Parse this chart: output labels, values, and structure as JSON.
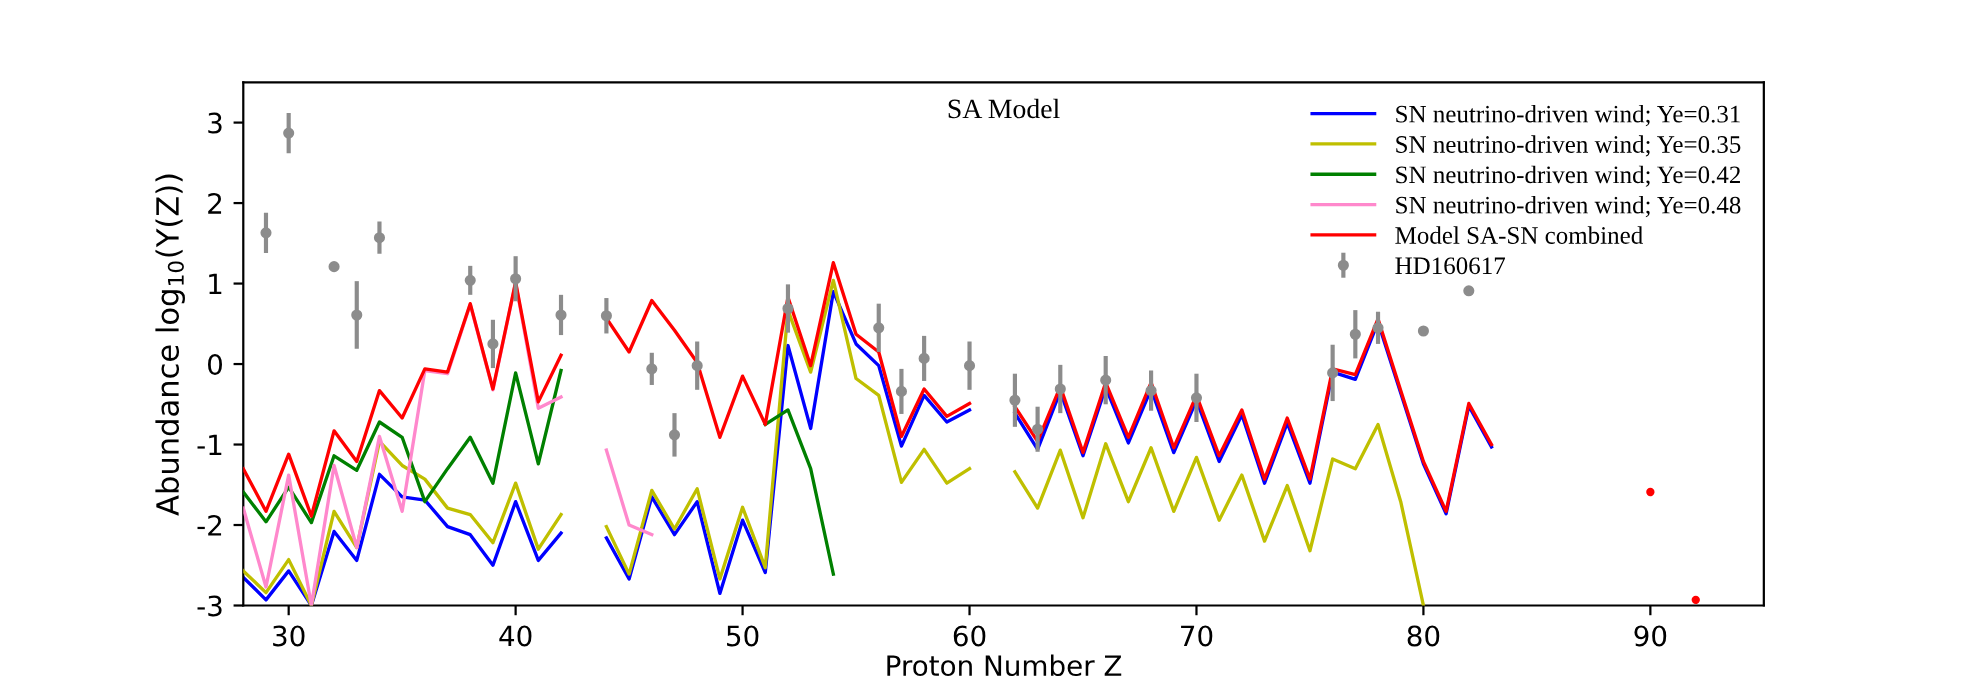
{
  "chart_data": {
    "type": "line",
    "title": "SA Model",
    "xlabel": "Proton Number Z",
    "ylabel": "Abundance log$_{10}$(Y(Z))",
    "x": [
      28,
      29,
      30,
      31,
      32,
      33,
      34,
      35,
      36,
      37,
      38,
      39,
      40,
      41,
      42,
      43,
      44,
      45,
      46,
      47,
      48,
      49,
      50,
      51,
      52,
      53,
      54,
      55,
      56,
      57,
      58,
      59,
      60,
      61,
      62,
      63,
      64,
      65,
      66,
      67,
      68,
      69,
      70,
      71,
      72,
      73,
      74,
      75,
      76,
      77,
      78,
      79,
      80,
      81,
      82,
      83,
      84,
      85,
      86,
      87,
      88,
      89,
      90,
      91,
      92
    ],
    "xlim": [
      28,
      95
    ],
    "ylim": [
      -3,
      3.5
    ],
    "xticks": [
      30,
      40,
      50,
      60,
      70,
      80,
      90
    ],
    "yticks": [
      -3,
      -2,
      -1,
      0,
      1,
      2,
      3
    ],
    "grid": false,
    "legend": "top right",
    "line_style": "solid",
    "series": [
      {
        "name": "SN neutrino-driven wind; Ye=0.31",
        "color": "#0000ff",
        "values": [
          -2.65,
          -2.93,
          -2.57,
          -3.0,
          -2.08,
          -2.44,
          -1.37,
          -1.65,
          -1.69,
          -2.02,
          -2.12,
          -2.5,
          -1.71,
          -2.44,
          -2.1,
          null,
          -2.16,
          -2.67,
          -1.65,
          -2.12,
          -1.71,
          -2.85,
          -1.94,
          -2.59,
          0.23,
          -0.8,
          0.9,
          0.25,
          -0.02,
          -1.02,
          -0.39,
          -0.72,
          -0.57,
          null,
          -0.61,
          -1.06,
          -0.34,
          -1.14,
          -0.29,
          -0.98,
          -0.31,
          -1.1,
          -0.45,
          -1.21,
          -0.63,
          -1.48,
          -0.73,
          -1.48,
          -0.1,
          -0.19,
          0.52,
          -0.36,
          -1.24,
          -1.86,
          -0.52,
          -1.03,
          null,
          null,
          null,
          null,
          null,
          null,
          null,
          null,
          null
        ]
      },
      {
        "name": "SN neutrino-driven wind; Ye=0.35",
        "color": "#bfbf00",
        "values": [
          -2.57,
          -2.84,
          -2.43,
          -3.0,
          -1.83,
          -2.28,
          -0.96,
          -1.26,
          -1.43,
          -1.79,
          -1.87,
          -2.22,
          -1.48,
          -2.3,
          -1.87,
          null,
          -2.02,
          -2.61,
          -1.57,
          -2.05,
          -1.55,
          -2.67,
          -1.78,
          -2.53,
          0.67,
          -0.1,
          1.04,
          -0.18,
          -0.39,
          -1.47,
          -1.06,
          -1.48,
          -1.3,
          null,
          -1.34,
          -1.79,
          -1.07,
          -1.91,
          -0.99,
          -1.71,
          -1.04,
          -1.83,
          -1.16,
          -1.94,
          -1.38,
          -2.2,
          -1.51,
          -2.32,
          -1.18,
          -1.3,
          -0.75,
          -1.71,
          -3.0,
          null,
          null,
          null,
          null,
          null,
          null,
          null,
          null,
          null,
          null,
          null,
          null
        ]
      },
      {
        "name": "SN neutrino-driven wind; Ye=0.42",
        "color": "#008000",
        "values": [
          -1.59,
          -1.96,
          -1.53,
          -1.97,
          -1.14,
          -1.32,
          -0.72,
          -0.91,
          -1.71,
          -1.3,
          -0.91,
          -1.48,
          -0.11,
          -1.24,
          -0.08,
          null,
          null,
          null,
          null,
          null,
          null,
          null,
          null,
          -0.75,
          -0.57,
          -1.3,
          -2.61,
          null,
          null,
          null,
          null,
          null,
          null,
          null,
          null,
          null,
          null,
          null,
          null,
          null,
          null,
          null,
          null,
          null,
          null,
          null,
          null,
          null,
          null,
          null,
          null,
          null,
          null,
          null,
          null,
          null,
          null,
          null,
          null,
          null,
          null,
          null,
          null,
          null,
          null
        ]
      },
      {
        "name": "SN neutrino-driven wind; Ye=0.48",
        "color": "#ff88cc",
        "values": [
          -1.79,
          -2.77,
          -1.38,
          -3.0,
          -1.26,
          -2.28,
          -0.9,
          -1.83,
          -0.08,
          -0.12,
          0.74,
          -0.32,
          1.01,
          -0.55,
          -0.41,
          null,
          -1.07,
          -2.0,
          -2.12,
          null,
          null,
          null,
          null,
          null,
          null,
          null,
          null,
          null,
          null,
          null,
          null,
          null,
          null,
          null,
          null,
          null,
          null,
          null,
          null,
          null,
          null,
          null,
          null,
          null,
          null,
          null,
          null,
          null,
          null,
          null,
          null,
          null,
          null,
          null,
          null,
          null,
          null,
          null,
          null,
          null,
          null,
          null,
          null,
          null,
          null
        ]
      },
      {
        "name": "Model SA-SN combined",
        "color": "#ff0000",
        "values": [
          -1.3,
          -1.83,
          -1.12,
          -1.89,
          -0.83,
          -1.21,
          -0.33,
          -0.67,
          -0.06,
          -0.1,
          0.75,
          -0.31,
          1.02,
          -0.47,
          0.11,
          null,
          0.57,
          0.15,
          0.79,
          0.42,
          0.02,
          -0.91,
          -0.15,
          -0.75,
          0.83,
          -0.02,
          1.26,
          0.37,
          0.15,
          -0.9,
          -0.31,
          -0.65,
          -0.49,
          null,
          -0.53,
          -0.96,
          -0.28,
          -1.1,
          -0.23,
          -0.91,
          -0.23,
          -1.04,
          -0.39,
          -1.14,
          -0.57,
          -1.43,
          -0.67,
          -1.43,
          -0.06,
          -0.13,
          0.56,
          -0.33,
          -1.21,
          -1.83,
          -0.49,
          -1.0,
          null,
          null,
          null,
          null,
          null,
          null,
          -1.59,
          null,
          -2.93
        ]
      },
      {
        "name": "HD160617",
        "type": "scatter",
        "color": "#8c8c8c",
        "marker": "circle",
        "x": [
          29,
          30,
          32,
          33,
          34,
          38,
          39,
          40,
          42,
          44,
          46,
          47,
          48,
          52,
          56,
          57,
          58,
          60,
          62,
          63,
          64,
          66,
          68,
          70,
          76,
          77,
          78,
          80,
          82
        ],
        "values": [
          1.63,
          2.87,
          1.21,
          0.61,
          1.57,
          1.04,
          0.25,
          1.06,
          0.61,
          0.6,
          -0.06,
          -0.88,
          -0.02,
          0.69,
          0.45,
          -0.34,
          0.07,
          -0.02,
          -0.45,
          -0.81,
          -0.31,
          -0.2,
          -0.33,
          -0.42,
          -0.11,
          0.37,
          0.45,
          0.41,
          0.91
        ],
        "errors": [
          0.25,
          0.25,
          null,
          0.42,
          0.2,
          0.18,
          0.3,
          0.28,
          0.25,
          0.22,
          0.2,
          0.27,
          0.3,
          0.3,
          0.3,
          0.28,
          0.28,
          0.3,
          0.33,
          0.28,
          0.3,
          0.3,
          0.25,
          0.3,
          0.35,
          0.3,
          0.2,
          null,
          null
        ]
      }
    ]
  }
}
